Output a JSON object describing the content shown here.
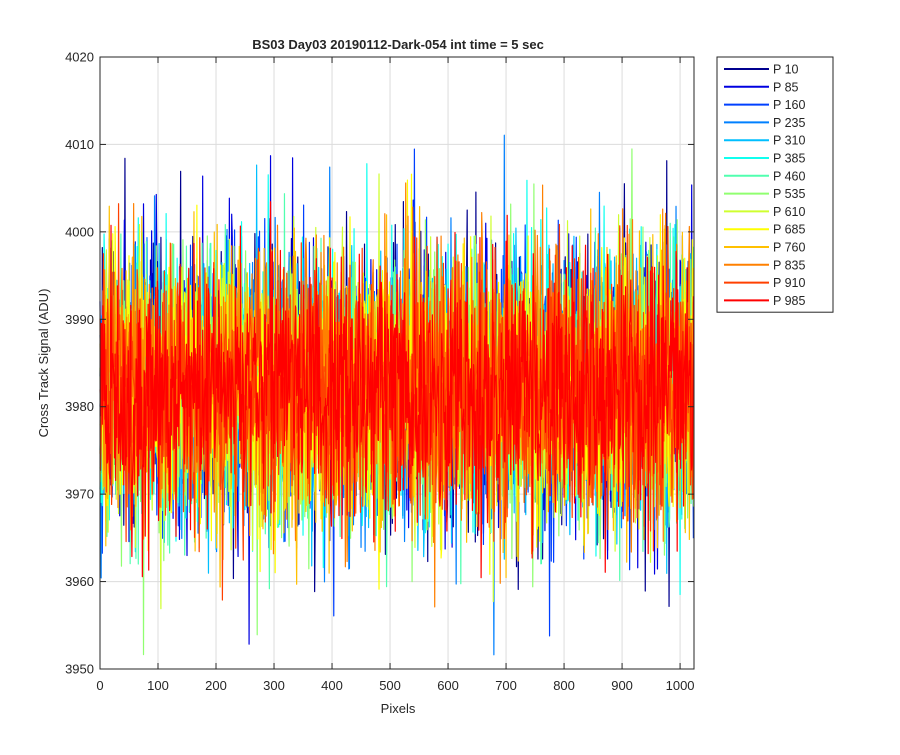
{
  "chart_data": {
    "type": "line",
    "title": "BS03 Day03 20190112-Dark-054 int time = 5 sec",
    "xlabel": "Pixels",
    "ylabel": "Cross Track Signal (ADU)",
    "xlim": [
      0,
      1024
    ],
    "ylim": [
      3950,
      4020
    ],
    "xticks": [
      0,
      100,
      200,
      300,
      400,
      500,
      600,
      700,
      800,
      900,
      1000
    ],
    "yticks": [
      3950,
      3960,
      3970,
      3980,
      3990,
      4000,
      4010,
      4020
    ],
    "grid": true,
    "legend_position": "outside-top-right",
    "noise_model": {
      "samples_per_series": 1024,
      "mean": 3982,
      "std": 7.5,
      "clip": [
        3951,
        4020
      ]
    },
    "series": [
      {
        "name": "P 10",
        "color": "#00008f"
      },
      {
        "name": "P 85",
        "color": "#0000e0"
      },
      {
        "name": "P 160",
        "color": "#0040ff"
      },
      {
        "name": "P 235",
        "color": "#0080ff"
      },
      {
        "name": "P 310",
        "color": "#00bfff"
      },
      {
        "name": "P 385",
        "color": "#10ffef"
      },
      {
        "name": "P 460",
        "color": "#50ffaf"
      },
      {
        "name": "P 535",
        "color": "#90ff70"
      },
      {
        "name": "P 610",
        "color": "#cfff30"
      },
      {
        "name": "P 685",
        "color": "#ffff00"
      },
      {
        "name": "P 760",
        "color": "#ffc000"
      },
      {
        "name": "P 835",
        "color": "#ff8000"
      },
      {
        "name": "P 910",
        "color": "#ff4000"
      },
      {
        "name": "P 985",
        "color": "#ff0000"
      }
    ]
  }
}
